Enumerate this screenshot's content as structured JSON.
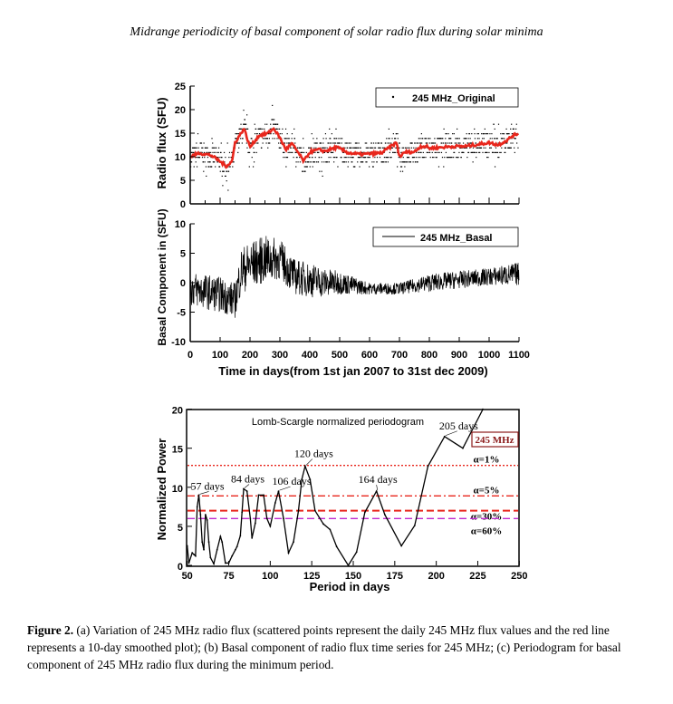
{
  "header": "Midrange periodicity of basal component of solar radio flux during solar minima",
  "caption": {
    "label": "Figure 2.",
    "text": " (a) Variation of 245 MHz radio flux (scattered points represent the daily 245 MHz flux values and the red line represents a 10-day smoothed plot); (b) Basal component of radio flux time series for 245 MHz; (c) Periodogram for basal component of 245 MHz radio flux during the minimum period."
  },
  "chart_data": [
    {
      "type": "scatter",
      "panel": "a",
      "ylabel": "Radio flux (SFU)",
      "legend": "245 MHz_Original",
      "legend_position": "top-right",
      "xlim": [
        0,
        1100
      ],
      "ylim": [
        0,
        25
      ],
      "yticks": [
        "25",
        "20",
        "15",
        "10",
        "5",
        "0"
      ],
      "smoothed_color": "#e8261c",
      "smoothed_line": {
        "x": [
          0,
          30,
          70,
          100,
          120,
          140,
          150,
          180,
          200,
          230,
          260,
          280,
          300,
          320,
          340,
          360,
          380,
          400,
          430,
          450,
          490,
          530,
          570,
          640,
          690,
          700,
          720,
          750,
          770,
          790,
          800,
          840,
          880,
          920,
          1000,
          1030,
          1060,
          1080,
          1100
        ],
        "y": [
          10,
          10.8,
          10.3,
          9,
          8,
          9,
          13,
          16,
          12,
          14.5,
          15,
          16,
          14,
          11.5,
          12.8,
          11,
          9,
          11,
          11.5,
          11.2,
          12,
          10.8,
          10.5,
          10.8,
          13,
          10,
          11,
          11,
          12.2,
          12.2,
          11.8,
          12,
          12.2,
          12.2,
          13,
          12.5,
          13.5,
          14.5,
          15
        ]
      }
    },
    {
      "type": "line",
      "panel": "b",
      "ylabel": "Basal Component in (SFU)",
      "xlabel": "Time in days(from 1st jan 2007 to 31st dec 2009)",
      "legend": "245 MHz_Basal",
      "legend_position": "top-right",
      "xlim": [
        0,
        1100
      ],
      "ylim": [
        -10,
        10
      ],
      "xticks": [
        "0",
        "100",
        "200",
        "300",
        "400",
        "500",
        "600",
        "700",
        "800",
        "900",
        "1000",
        "1100"
      ],
      "yticks": [
        "10",
        "5",
        "0",
        "-5",
        "-10"
      ],
      "envelope": {
        "x": [
          0,
          100,
          150,
          170,
          200,
          250,
          300,
          350,
          400,
          450,
          500,
          550,
          600,
          700,
          750,
          800,
          900,
          1000,
          1100
        ],
        "mean": [
          -1,
          -2,
          -3,
          2,
          3,
          4,
          4,
          1,
          0.5,
          0,
          0,
          -0.5,
          -1,
          -1,
          -0.5,
          0,
          0.5,
          1,
          1.5
        ],
        "amplitude": [
          3,
          3,
          3,
          4,
          4,
          4,
          3.5,
          3,
          3,
          2.5,
          2,
          1.5,
          1,
          1,
          1.2,
          1.5,
          1.5,
          1.5,
          2
        ]
      }
    },
    {
      "type": "line",
      "panel": "c",
      "title": "Lomb-Scargle normalized periodogram",
      "xlabel": "Period in days",
      "ylabel": "Normalized Power",
      "xlim": [
        50,
        250
      ],
      "ylim": [
        0,
        20
      ],
      "xticks": [
        "50",
        "75",
        "100",
        "125",
        "150",
        "175",
        "200",
        "225",
        "250"
      ],
      "yticks": [
        "20",
        "15",
        "10",
        "5",
        "0"
      ],
      "legend": "245 MHz",
      "legend_color": "#8b1a1a",
      "x": [
        50,
        51,
        53,
        54,
        55,
        56,
        57,
        58,
        59,
        60,
        61,
        62,
        63,
        64,
        66,
        68,
        70,
        71,
        73,
        75,
        77,
        79,
        80,
        82,
        83,
        84,
        86,
        88,
        89,
        91,
        93,
        96,
        98,
        100,
        103,
        105,
        108,
        111,
        114,
        117,
        119,
        121,
        124,
        127,
        132,
        136,
        140,
        147,
        152,
        157,
        164,
        169,
        179,
        187,
        195,
        205,
        216,
        228
      ],
      "y": [
        2.5,
        0.3,
        1.6,
        1.4,
        1.2,
        7.5,
        9,
        6.5,
        3,
        2,
        6.5,
        5.8,
        3,
        1,
        0.2,
        2,
        3.7,
        3,
        0.3,
        0.3,
        1.2,
        2,
        2.4,
        3.8,
        6.8,
        9.8,
        9.5,
        6,
        3.5,
        5.4,
        9,
        9,
        6,
        5,
        8,
        9.5,
        6,
        1.6,
        3,
        7,
        11,
        12.7,
        11,
        7,
        5.3,
        4.6,
        2.4,
        0,
        1.7,
        6.8,
        9.5,
        6.5,
        2.5,
        5.1,
        12.7,
        16.5,
        15,
        20
      ],
      "peaks": [
        {
          "label": "57 days",
          "x": 57,
          "y": 9
        },
        {
          "label": "84 days",
          "x": 84,
          "y": 9.8
        },
        {
          "label": "106 days",
          "x": 105,
          "y": 9.5
        },
        {
          "label": "120 days",
          "x": 121,
          "y": 12.7
        },
        {
          "label": "164 days",
          "x": 164,
          "y": 9.5
        },
        {
          "label": "205 days",
          "x": 205,
          "y": 16.5
        }
      ],
      "thresholds": [
        {
          "label": "α=1%",
          "value": 12.8,
          "color": "#e8261c",
          "style": "dotted"
        },
        {
          "label": "α=5%",
          "value": 8.9,
          "color": "#e8261c",
          "style": "dashdot"
        },
        {
          "label": "α=30%",
          "value": 7.0,
          "color": "#e8261c",
          "style": "dashed"
        },
        {
          "label": "α=60%",
          "value": 6.0,
          "color": "#c02ad0",
          "style": "dashed"
        }
      ]
    }
  ]
}
